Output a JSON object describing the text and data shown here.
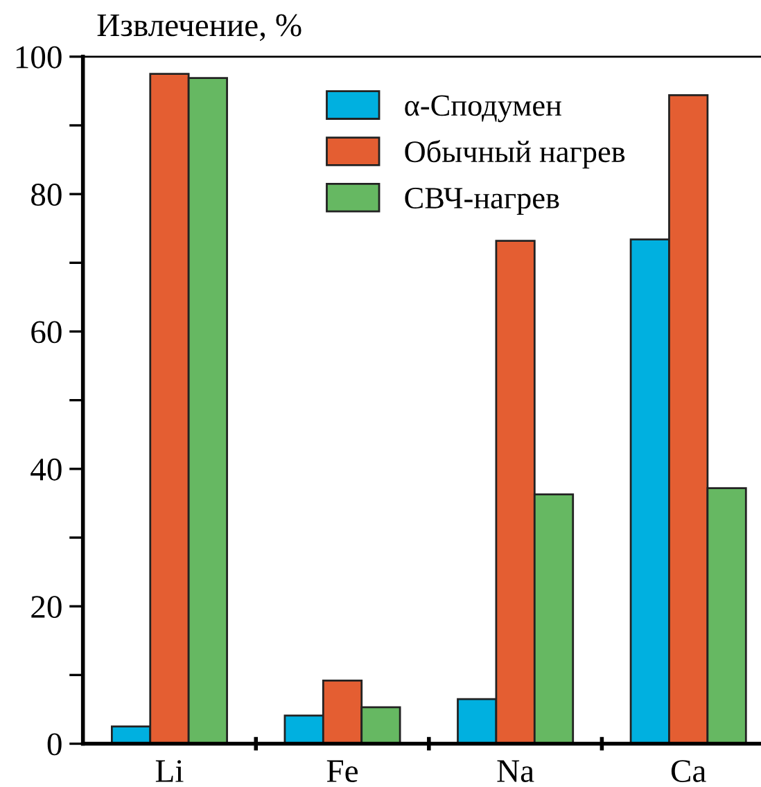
{
  "chart_data": {
    "type": "bar",
    "ylabel": "Извлечение, %",
    "categories": [
      "Li",
      "Fe",
      "Na",
      "Ca"
    ],
    "series": [
      {
        "name": "α-Сподумен",
        "color": "#00b0e0",
        "values": [
          2.5,
          4.1,
          6.5,
          73.4
        ]
      },
      {
        "name": "Обычный нагрев",
        "color": "#e45e32",
        "values": [
          97.5,
          9.2,
          73.2,
          94.4
        ]
      },
      {
        "name": "СВЧ-нагрев",
        "color": "#66b862",
        "values": [
          96.9,
          5.3,
          36.3,
          37.2
        ]
      }
    ],
    "ylim": [
      0,
      100
    ],
    "yticks": [
      0,
      {
        "value": 10,
        "label": null
      },
      20,
      {
        "value": 30,
        "label": null
      },
      40,
      {
        "value": 50,
        "label": null
      },
      60,
      {
        "value": 70,
        "label": null
      },
      80,
      {
        "value": 90,
        "label": null
      },
      100
    ],
    "grid": false,
    "legend": "top"
  }
}
